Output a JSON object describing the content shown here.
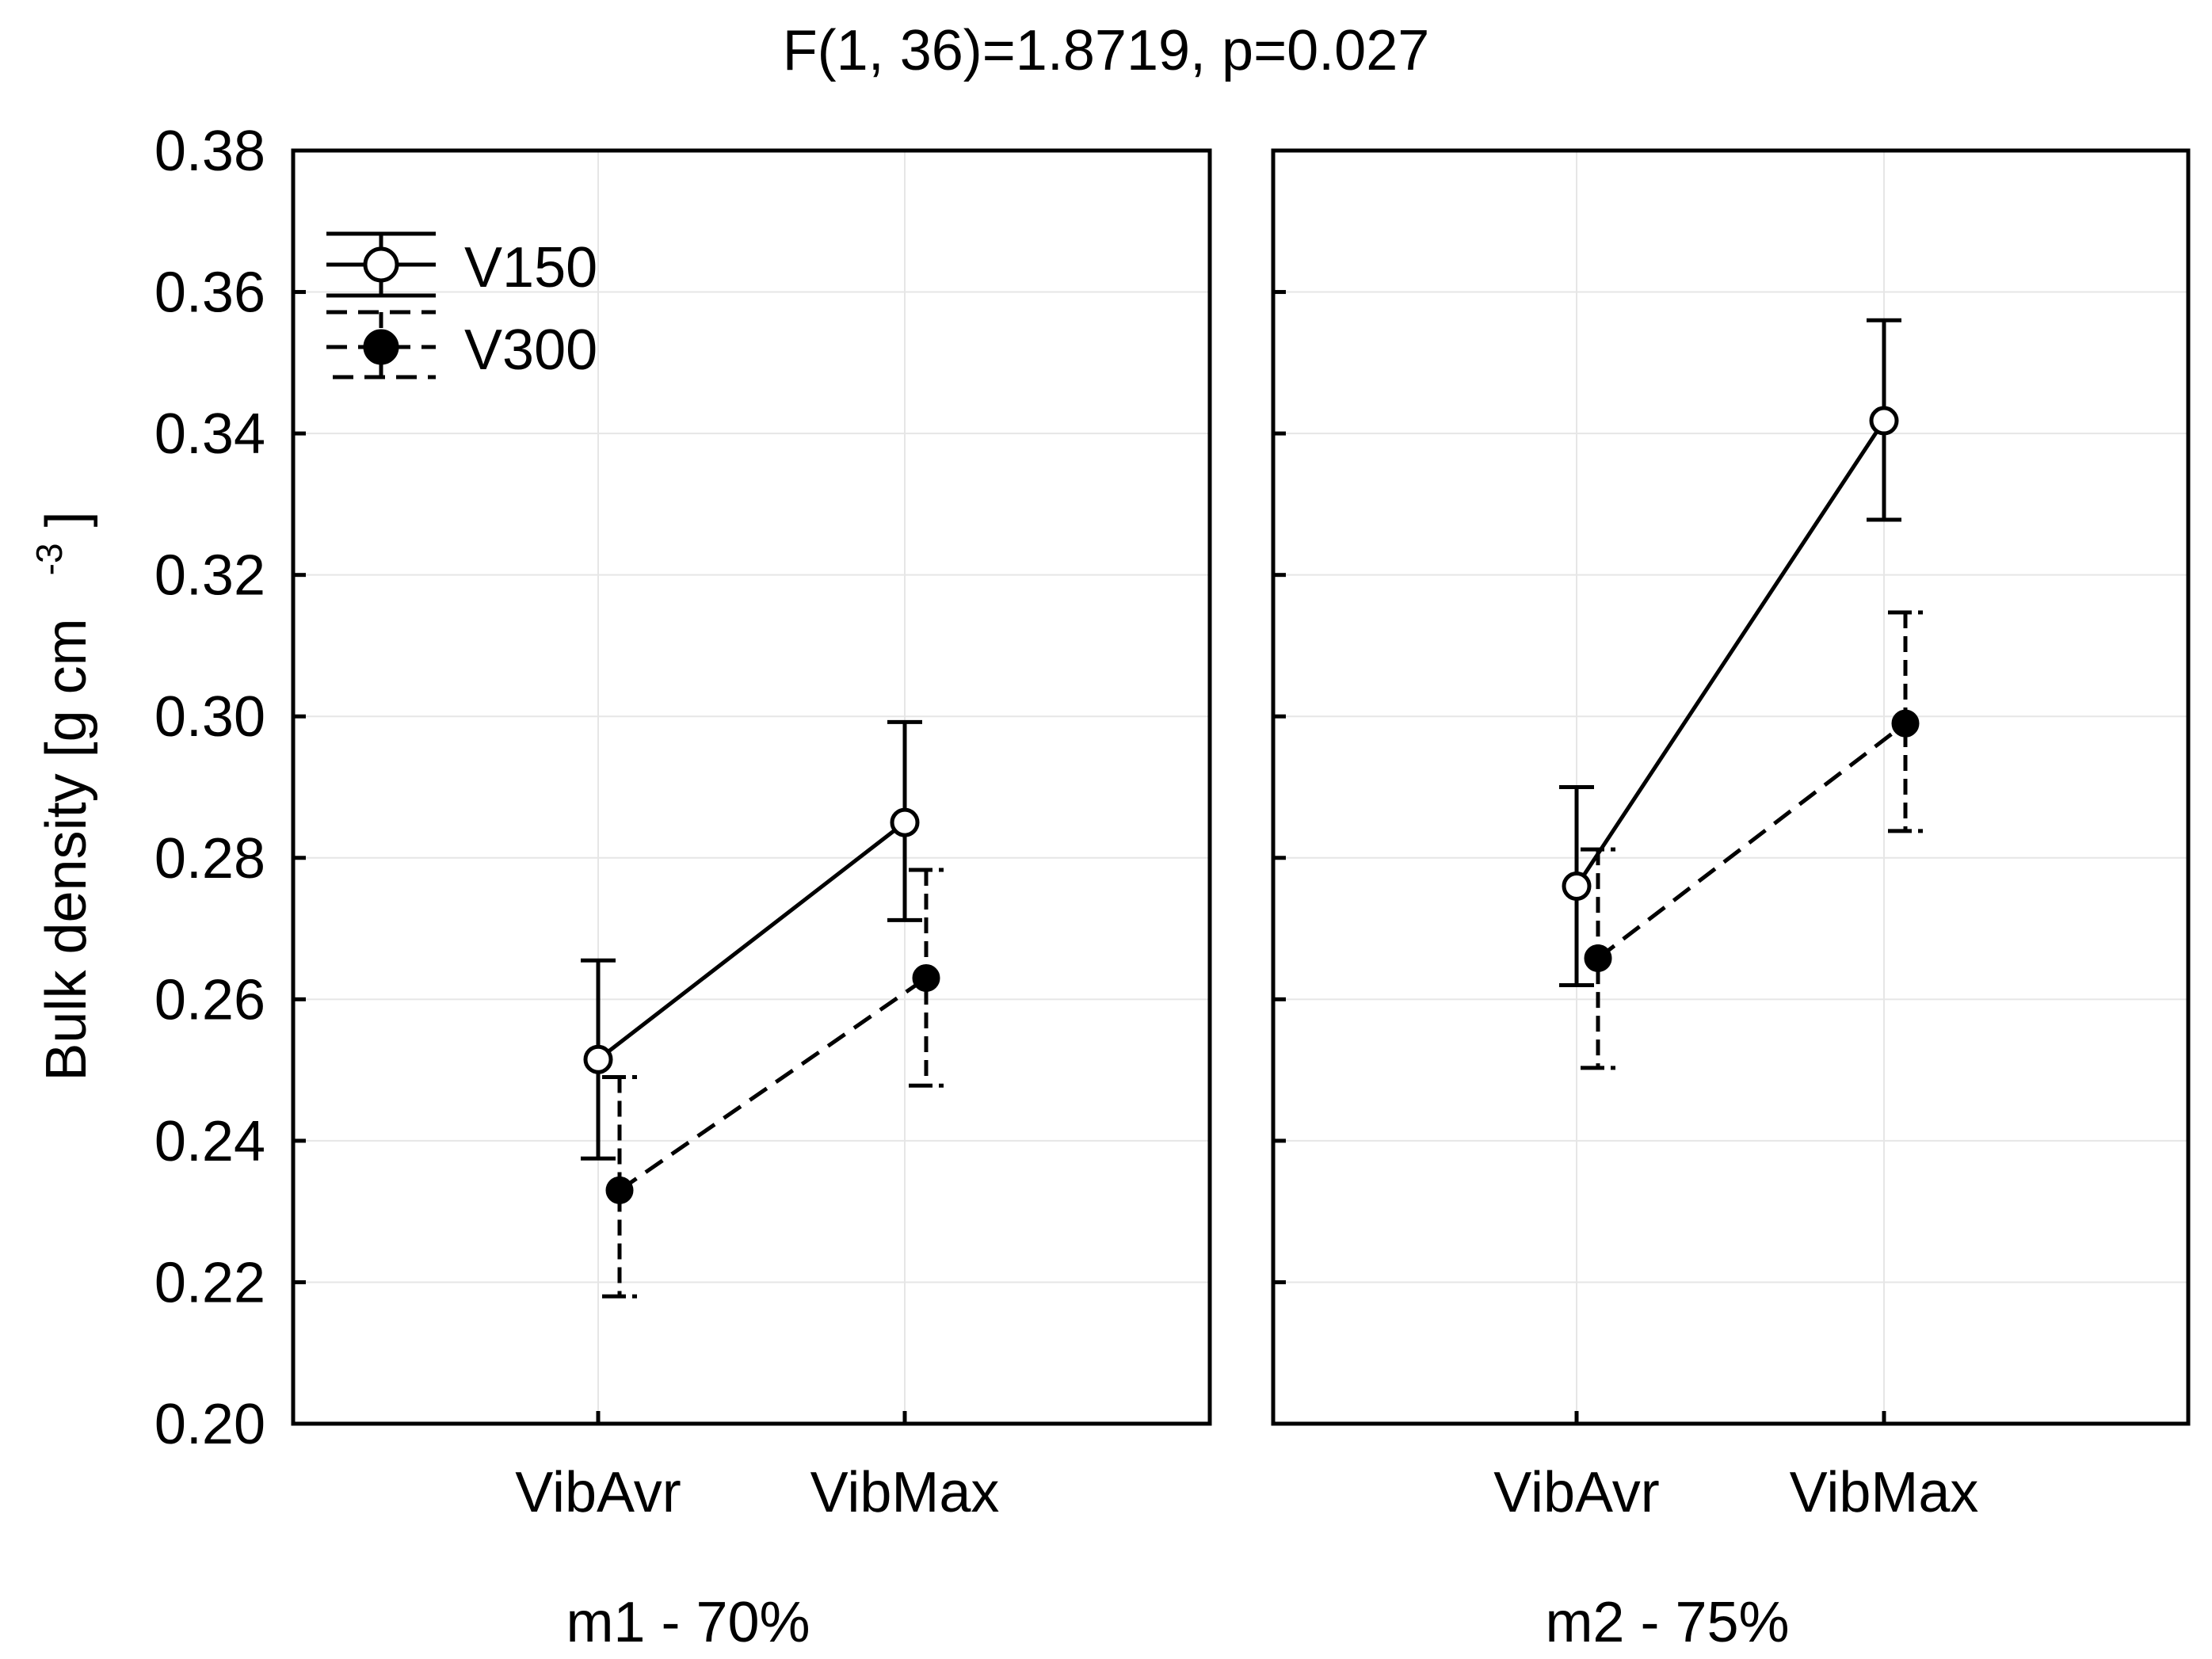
{
  "chart_data": {
    "type": "line",
    "title": "F(1, 36)=1.8719, p=0.027",
    "ylabel": "Bulk density [g cm",
    "ylabel_sup": "-3",
    "ylabel_close": "]",
    "ylim": [
      0.2,
      0.38
    ],
    "yticks": [
      "0.20",
      "0.22",
      "0.24",
      "0.26",
      "0.28",
      "0.30",
      "0.32",
      "0.34",
      "0.36",
      "0.38"
    ],
    "grid": true,
    "legend": {
      "placement": "top-left",
      "entries": [
        {
          "name": "V150",
          "style": "solid",
          "marker": "open-circle"
        },
        {
          "name": "V300",
          "style": "dashed",
          "marker": "filled-circle"
        }
      ]
    },
    "panels": [
      {
        "label": "m1 - 70%",
        "categories": [
          "VibAvr",
          "VibMax"
        ],
        "series": [
          {
            "name": "V150",
            "values": [
              0.2515,
              0.285
            ],
            "lower": [
              0.2375,
              0.2712
            ],
            "upper": [
              0.2655,
              0.2992
            ]
          },
          {
            "name": "V300",
            "values": [
              0.233,
              0.263
            ],
            "lower": [
              0.218,
              0.2478
            ],
            "upper": [
              0.249,
              0.2783
            ]
          }
        ]
      },
      {
        "label": "m2 - 75%",
        "categories": [
          "VibAvr",
          "VibMax"
        ],
        "series": [
          {
            "name": "V150",
            "values": [
              0.276,
              0.3418
            ],
            "lower": [
              0.262,
              0.3278
            ],
            "upper": [
              0.29,
              0.356
            ]
          },
          {
            "name": "V300",
            "values": [
              0.2658,
              0.299
            ],
            "lower": [
              0.2503,
              0.2838
            ],
            "upper": [
              0.2812,
              0.3147
            ]
          }
        ]
      }
    ]
  }
}
